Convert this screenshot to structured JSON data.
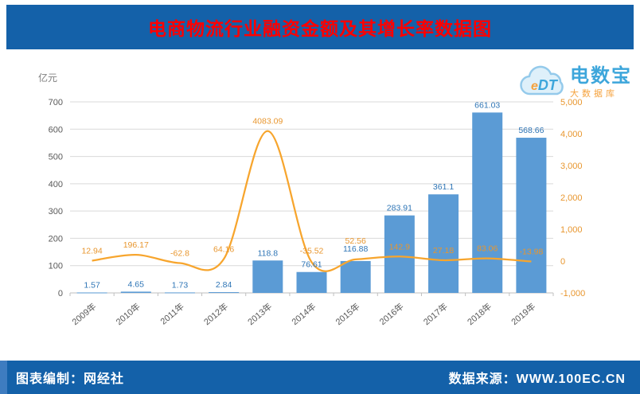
{
  "header": {
    "title": "电商物流行业融资金额及其增长率数据图"
  },
  "logo": {
    "cloud_text_e": "e",
    "cloud_text_dt": "DT",
    "name": "电数宝",
    "subtitle": "大数据库"
  },
  "footer": {
    "left": "图表编制：网经社",
    "right": "数据来源：WWW.100EC.CN"
  },
  "colors": {
    "header_bg": "#1461A9",
    "title": "#FF0000",
    "bar": "#5B9BD5",
    "bar_label": "#2E75B6",
    "line": "#F7A52D",
    "line_label": "#E8962E",
    "left_axis_label": "#595959",
    "right_axis_label": "#E8962E",
    "grid": "#D9D9D9",
    "axis_line": "#BFBFBF",
    "unit_label": "#7F7F7F",
    "footer_bg": "#1461A9",
    "footer_text": "#FFFFFF",
    "logo_blue": "#2D9FD9",
    "logo_orange": "#F59B2D"
  },
  "chart_data": {
    "type": "bar",
    "subtype": "combo-bar-line",
    "title": "电商物流行业融资金额及其增长率数据图",
    "unit_label": "亿元",
    "categories": [
      "2009年",
      "2010年",
      "2011年",
      "2012年",
      "2013年",
      "2014年",
      "2015年",
      "2016年",
      "2017年",
      "2018年",
      "2019年"
    ],
    "series": [
      {
        "name": "融资金额",
        "type": "bar",
        "axis": "left",
        "values": [
          1.57,
          4.65,
          1.73,
          2.84,
          118.8,
          76.61,
          116.88,
          283.91,
          361.1,
          661.03,
          568.66
        ]
      },
      {
        "name": "增长率",
        "type": "line",
        "axis": "right",
        "values": [
          12.94,
          196.17,
          -62.8,
          64.16,
          4083.09,
          -35.52,
          52.56,
          142.9,
          27.18,
          83.06,
          -13.98
        ]
      }
    ],
    "left_axis": {
      "min": 0,
      "max": 700,
      "step": 100,
      "tick_labels": [
        "0",
        "100",
        "200",
        "300",
        "400",
        "500",
        "600",
        "700"
      ]
    },
    "right_axis": {
      "min": -1000,
      "max": 5000,
      "step": 1000,
      "tick_labels": [
        "-1,000",
        "0",
        "1,000",
        "2,000",
        "3,000",
        "4,000",
        "5,000"
      ]
    },
    "grid": true,
    "legend": "none"
  }
}
